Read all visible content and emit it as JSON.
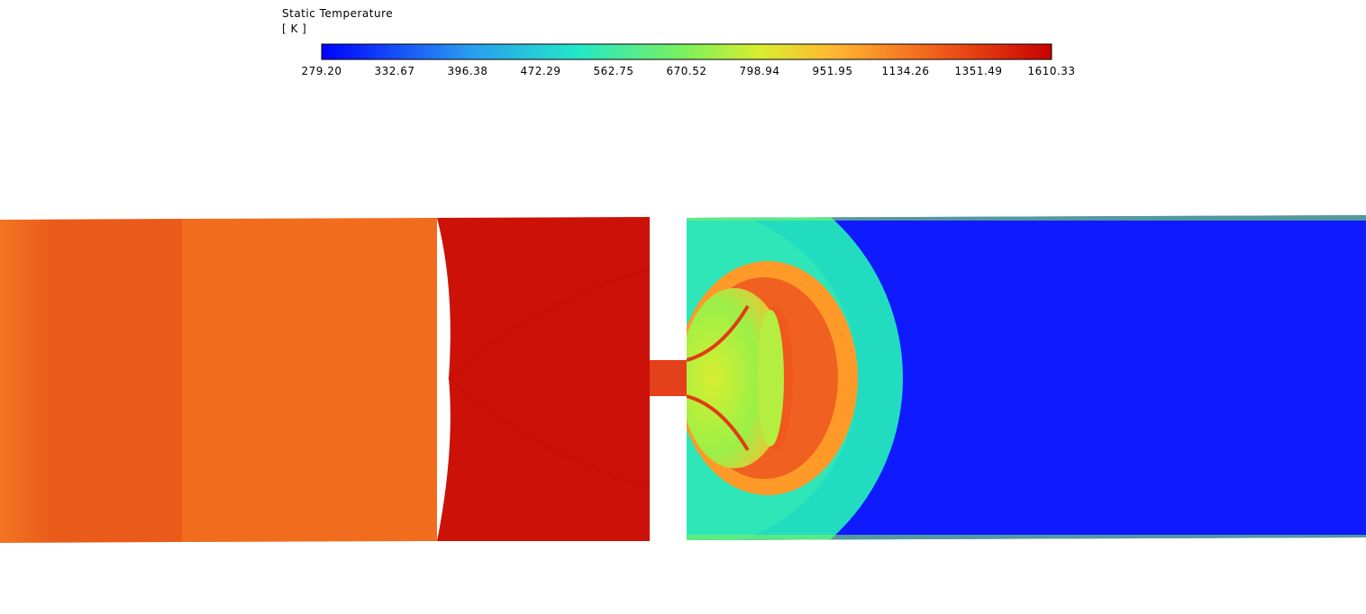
{
  "legend": {
    "title": "Static Temperature",
    "unit": "[ K ]",
    "ticks": [
      "279.20",
      "332.67",
      "396.38",
      "472.29",
      "562.75",
      "670.52",
      "798.94",
      "951.95",
      "1134.26",
      "1351.49",
      "1610.33"
    ]
  }
}
